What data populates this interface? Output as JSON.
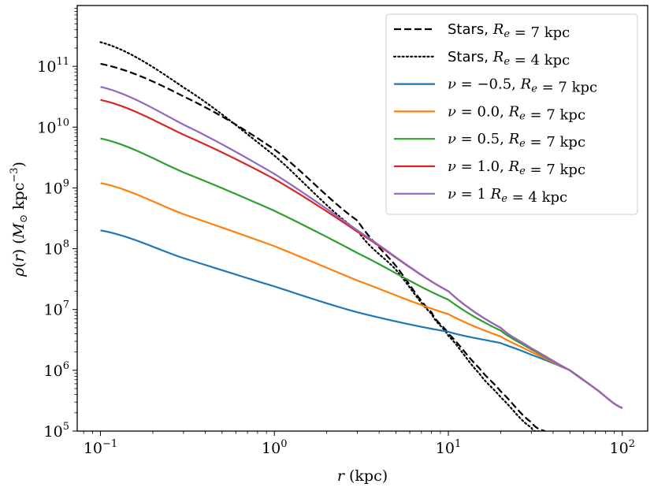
{
  "chart_data": {
    "type": "line",
    "title": "",
    "xlabel": "r (kpc)",
    "ylabel": "ρ(r) (M⊙ kpc⁻³)",
    "xscale": "log",
    "yscale": "log",
    "xlim": [
      0.0735,
      140
    ],
    "ylim": [
      100000.0,
      1000000000000.0
    ],
    "xticks": [
      {
        "value": 0.1,
        "base": "10",
        "exp": "−1"
      },
      {
        "value": 1,
        "base": "10",
        "exp": "0"
      },
      {
        "value": 10,
        "base": "10",
        "exp": "1"
      },
      {
        "value": 100,
        "base": "10",
        "exp": "2"
      }
    ],
    "yticks": [
      {
        "value": 100000,
        "base": "10",
        "exp": "5"
      },
      {
        "value": 1000000,
        "base": "10",
        "exp": "6"
      },
      {
        "value": 10000000,
        "base": "10",
        "exp": "7"
      },
      {
        "value": 100000000,
        "base": "10",
        "exp": "8"
      },
      {
        "value": 1000000000,
        "base": "10",
        "exp": "9"
      },
      {
        "value": 10000000000,
        "base": "10",
        "exp": "10"
      },
      {
        "value": 100000000000,
        "base": "10",
        "exp": "11"
      }
    ],
    "legend_position": "top-right",
    "series": [
      {
        "name": "Stars, Re = 7 kpc",
        "legend_label": "Stars, R_e = 7 kpc",
        "color": "#000000",
        "style": "dashed",
        "points": [
          [
            0.1,
            110000000000.0
          ],
          [
            0.3,
            32000000000.0
          ],
          [
            1,
            4300000000.0
          ],
          [
            3,
            290000000.0
          ],
          [
            5,
            52000000.0
          ],
          [
            8,
            9000000.0
          ],
          [
            10,
            4000000.0
          ],
          [
            15,
            1100000.0
          ],
          [
            20,
            450000.0
          ],
          [
            30,
            140000.0
          ],
          [
            36,
            100000.0
          ]
        ]
      },
      {
        "name": "Stars, Re = 4 kpc",
        "legend_label": "Stars, R_e = 4 kpc",
        "color": "#000000",
        "style": "dotted",
        "points": [
          [
            0.1,
            250000000000.0
          ],
          [
            0.3,
            45000000000.0
          ],
          [
            1,
            3400000000.0
          ],
          [
            3,
            200000000.0
          ],
          [
            5,
            45000000.0
          ],
          [
            8,
            8500000.0
          ],
          [
            10,
            3700000.0
          ],
          [
            15,
            900000.0
          ],
          [
            20,
            360000.0
          ],
          [
            30,
            115000.0
          ],
          [
            33,
            100000.0
          ]
        ]
      },
      {
        "name": "ν = −0.5, Re = 7 kpc",
        "legend_label": "ν = −0.5, R_e = 7 kpc",
        "color": "#1f77b4",
        "style": "solid",
        "points": [
          [
            0.1,
            200000000.0
          ],
          [
            0.3,
            70000000.0
          ],
          [
            1,
            24000000.0
          ],
          [
            3,
            9000000.0
          ],
          [
            10,
            4300000.0
          ],
          [
            20,
            2800000.0
          ],
          [
            30,
            1800000.0
          ],
          [
            50,
            1000000.0
          ],
          [
            70,
            500000.0
          ],
          [
            100,
            240000.0
          ]
        ]
      },
      {
        "name": "ν = 0.0, Re = 7 kpc",
        "legend_label": "ν = 0.0, R_e = 7 kpc",
        "color": "#ff7f0e",
        "style": "solid",
        "points": [
          [
            0.1,
            1200000000.0
          ],
          [
            0.3,
            370000000.0
          ],
          [
            1,
            110000000.0
          ],
          [
            3,
            30000000.0
          ],
          [
            10,
            8400000.0
          ],
          [
            20,
            3600000.0
          ],
          [
            30,
            2000000.0
          ],
          [
            50,
            1000000.0
          ],
          [
            70,
            500000.0
          ],
          [
            100,
            240000.0
          ]
        ]
      },
      {
        "name": "ν = 0.5, Re = 7 kpc",
        "legend_label": "ν = 0.5, R_e = 7 kpc",
        "color": "#2ca02c",
        "style": "solid",
        "points": [
          [
            0.1,
            6500000000.0
          ],
          [
            0.3,
            1800000000.0
          ],
          [
            1,
            420000000.0
          ],
          [
            3,
            85000000.0
          ],
          [
            10,
            14500000.0
          ],
          [
            20,
            4500000.0
          ],
          [
            30,
            2200000.0
          ],
          [
            50,
            1000000.0
          ],
          [
            70,
            500000.0
          ],
          [
            100,
            240000.0
          ]
        ]
      },
      {
        "name": "ν = 1.0, Re = 7 kpc",
        "legend_label": "ν = 1.0, R_e = 7 kpc",
        "color": "#d62728",
        "style": "solid",
        "points": [
          [
            0.1,
            28000000000.0
          ],
          [
            0.3,
            7500000000.0
          ],
          [
            1,
            1400000000.0
          ],
          [
            3,
            190000000.0
          ],
          [
            10,
            20000000.0
          ],
          [
            20,
            5000000.0
          ],
          [
            30,
            2300000.0
          ],
          [
            50,
            1000000.0
          ],
          [
            70,
            500000.0
          ],
          [
            100,
            240000.0
          ]
        ]
      },
      {
        "name": "ν = 1 Re = 4 kpc",
        "legend_label": "ν = 1 R_e = 4 kpc",
        "color": "#9467bd",
        "style": "solid",
        "points": [
          [
            0.1,
            46000000000.0
          ],
          [
            0.3,
            11000000000.0
          ],
          [
            1,
            1700000000.0
          ],
          [
            3,
            200000000.0
          ],
          [
            10,
            20000000.0
          ],
          [
            20,
            5000000.0
          ],
          [
            30,
            2300000.0
          ],
          [
            50,
            1000000.0
          ],
          [
            70,
            500000.0
          ],
          [
            100,
            240000.0
          ]
        ]
      }
    ]
  }
}
